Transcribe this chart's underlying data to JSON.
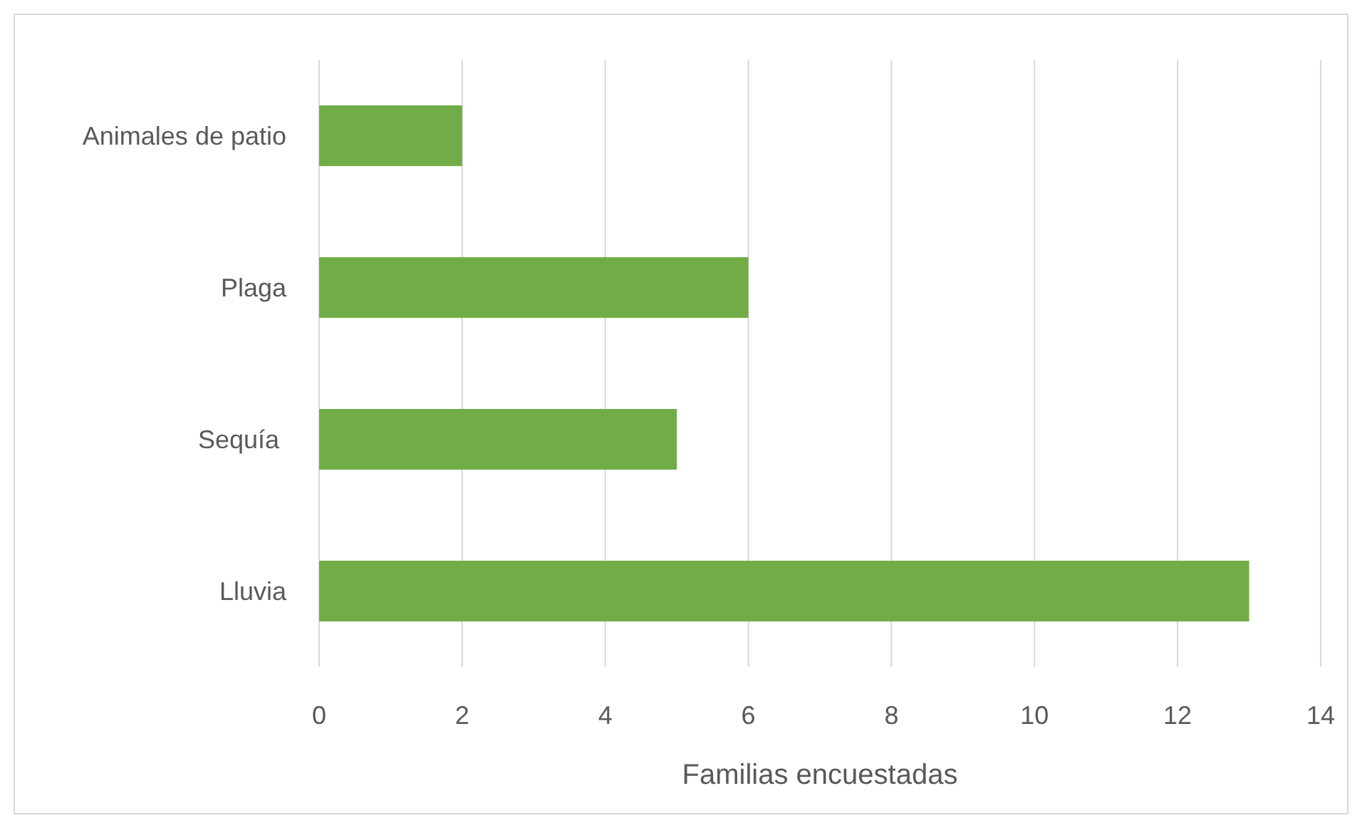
{
  "chart_data": {
    "type": "bar",
    "orientation": "horizontal",
    "categories": [
      "Animales de patio",
      "Plaga",
      "Sequía ",
      "Lluvia"
    ],
    "values": [
      2,
      6,
      5,
      13
    ],
    "color": "#70ad47",
    "xlim": [
      0,
      14
    ],
    "xticks": [
      0,
      2,
      4,
      6,
      8,
      10,
      12,
      14
    ],
    "xlabel": "Familias encuestadas",
    "grid": "x"
  }
}
